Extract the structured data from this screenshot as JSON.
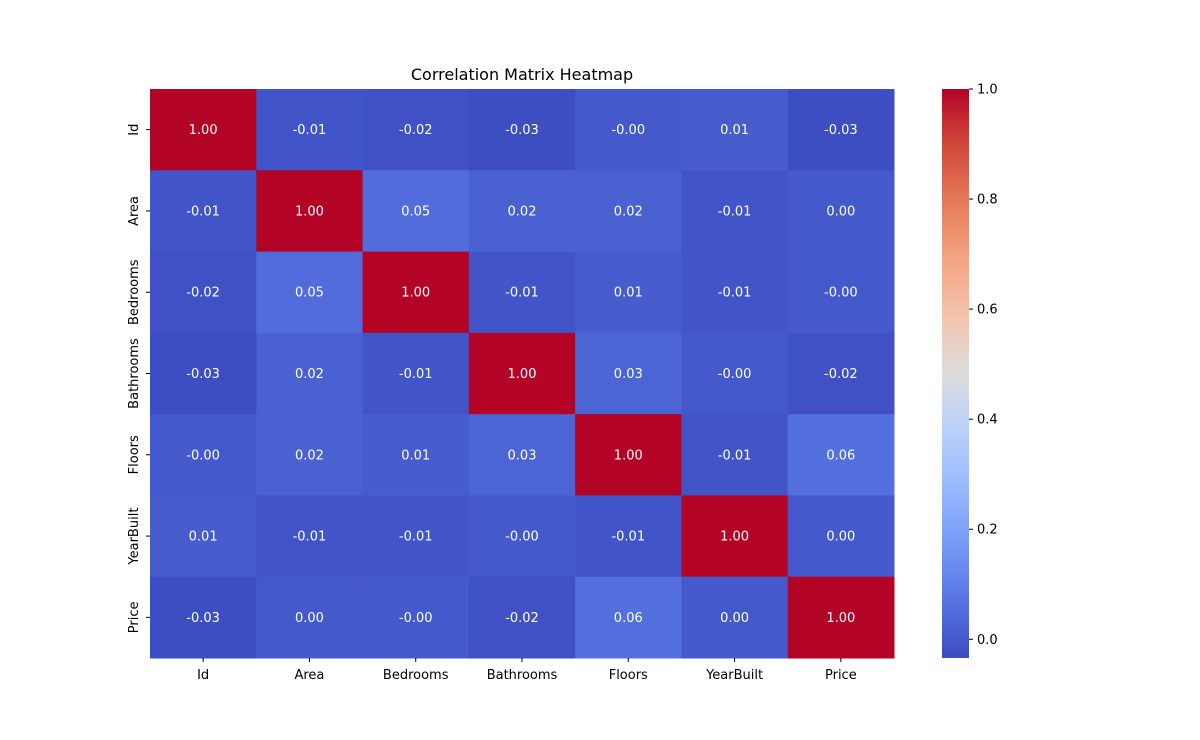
{
  "chart_data": {
    "type": "heatmap",
    "title": "Correlation Matrix Heatmap",
    "x_categories": [
      "Id",
      "Area",
      "Bedrooms",
      "Bathrooms",
      "Floors",
      "YearBuilt",
      "Price"
    ],
    "y_categories": [
      "Id",
      "Area",
      "Bedrooms",
      "Bathrooms",
      "Floors",
      "YearBuilt",
      "Price"
    ],
    "values": [
      [
        1.0,
        -0.01,
        -0.02,
        -0.03,
        -0.0,
        0.01,
        -0.03
      ],
      [
        -0.01,
        1.0,
        0.05,
        0.02,
        0.02,
        -0.01,
        0.0
      ],
      [
        -0.02,
        0.05,
        1.0,
        -0.01,
        0.01,
        -0.01,
        -0.0
      ],
      [
        -0.03,
        0.02,
        -0.01,
        1.0,
        0.03,
        -0.0,
        -0.02
      ],
      [
        -0.0,
        0.02,
        0.01,
        0.03,
        1.0,
        -0.01,
        0.06
      ],
      [
        0.01,
        -0.01,
        -0.01,
        -0.0,
        -0.01,
        1.0,
        0.0
      ],
      [
        -0.03,
        0.0,
        -0.0,
        -0.02,
        0.06,
        0.0,
        1.0
      ]
    ],
    "value_labels": [
      [
        "1.00",
        "-0.01",
        "-0.02",
        "-0.03",
        "-0.00",
        "0.01",
        "-0.03"
      ],
      [
        "-0.01",
        "1.00",
        "0.05",
        "0.02",
        "0.02",
        "-0.01",
        "0.00"
      ],
      [
        "-0.02",
        "0.05",
        "1.00",
        "-0.01",
        "0.01",
        "-0.01",
        "-0.00"
      ],
      [
        "-0.03",
        "0.02",
        "-0.01",
        "1.00",
        "0.03",
        "-0.00",
        "-0.02"
      ],
      [
        "-0.00",
        "0.02",
        "0.01",
        "0.03",
        "1.00",
        "-0.01",
        "0.06"
      ],
      [
        "0.01",
        "-0.01",
        "-0.01",
        "-0.00",
        "-0.01",
        "1.00",
        "0.00"
      ],
      [
        "-0.03",
        "0.00",
        "-0.00",
        "-0.02",
        "0.06",
        "0.00",
        "1.00"
      ]
    ],
    "colormap": "coolwarm",
    "colorbar": {
      "min": -0.034,
      "max": 1.0,
      "ticks": [
        0.0,
        0.2,
        0.4,
        0.6,
        0.8,
        1.0
      ],
      "tick_labels": [
        "0.0",
        "0.2",
        "0.4",
        "0.6",
        "0.8",
        "1.0"
      ]
    }
  }
}
